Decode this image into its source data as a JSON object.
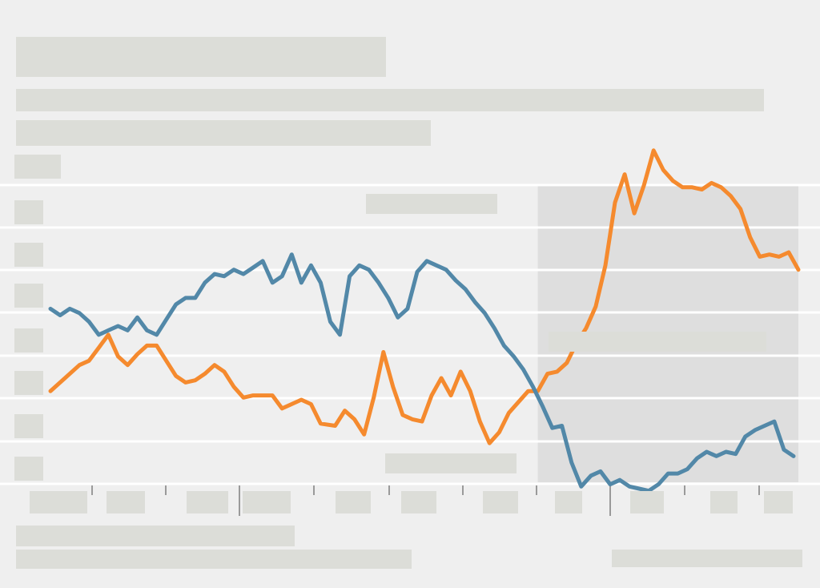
{
  "colors": {
    "background": "#efefef",
    "redaction": "#dcddd8",
    "gridline": "#ffffff",
    "highlight_band": "#dedede",
    "series_orange": "#f58a2e",
    "series_blue": "#5288a8"
  },
  "chart_data": {
    "type": "line",
    "title": "",
    "subtitle": "",
    "xlabel": "",
    "ylabel": "",
    "grid": "horizontal",
    "legend": "none",
    "xlim": [
      0,
      155
    ],
    "ylim": [
      0,
      8
    ],
    "highlight": {
      "x_start": 101,
      "x_end": 155
    },
    "series": [
      {
        "color": "#f58a2e",
        "points": [
          [
            0,
            2.25
          ],
          [
            3,
            2.55
          ],
          [
            6,
            2.85
          ],
          [
            8,
            2.95
          ],
          [
            10,
            3.25
          ],
          [
            12,
            3.55
          ],
          [
            14,
            3.05
          ],
          [
            16,
            2.85
          ],
          [
            18,
            3.1
          ],
          [
            20,
            3.3
          ],
          [
            22,
            3.3
          ],
          [
            24,
            2.95
          ],
          [
            26,
            2.6
          ],
          [
            28,
            2.45
          ],
          [
            30,
            2.5
          ],
          [
            32,
            2.65
          ],
          [
            34,
            2.85
          ],
          [
            36,
            2.7
          ],
          [
            38,
            2.35
          ],
          [
            40,
            2.1
          ],
          [
            42,
            2.15
          ],
          [
            46,
            2.15
          ],
          [
            48,
            1.85
          ],
          [
            52,
            2.05
          ],
          [
            54,
            1.95
          ],
          [
            56,
            1.5
          ],
          [
            59,
            1.45
          ],
          [
            61,
            1.8
          ],
          [
            63,
            1.6
          ],
          [
            65,
            1.25
          ],
          [
            67,
            2.1
          ],
          [
            69,
            3.15
          ],
          [
            71,
            2.35
          ],
          [
            73,
            1.7
          ],
          [
            75,
            1.6
          ],
          [
            77,
            1.55
          ],
          [
            79,
            2.15
          ],
          [
            81,
            2.55
          ],
          [
            83,
            2.15
          ],
          [
            85,
            2.7
          ],
          [
            87,
            2.25
          ],
          [
            89,
            1.55
          ],
          [
            91,
            1.05
          ],
          [
            93,
            1.3
          ],
          [
            95,
            1.75
          ],
          [
            97,
            2.0
          ],
          [
            99,
            2.25
          ],
          [
            101,
            2.25
          ],
          [
            103,
            2.65
          ],
          [
            105,
            2.7
          ],
          [
            107,
            2.9
          ],
          [
            109,
            3.35
          ],
          [
            111,
            3.7
          ],
          [
            113,
            4.2
          ],
          [
            115,
            5.15
          ],
          [
            117,
            6.6
          ],
          [
            119,
            7.25
          ],
          [
            121,
            6.35
          ],
          [
            123,
            7.0
          ],
          [
            125,
            7.8
          ],
          [
            127,
            7.35
          ],
          [
            129,
            7.1
          ],
          [
            131,
            6.95
          ],
          [
            133,
            6.95
          ],
          [
            135,
            6.9
          ],
          [
            137,
            7.05
          ],
          [
            139,
            6.95
          ],
          [
            141,
            6.75
          ],
          [
            143,
            6.45
          ],
          [
            145,
            5.8
          ],
          [
            147,
            5.35
          ],
          [
            149,
            5.4
          ],
          [
            151,
            5.35
          ],
          [
            153,
            5.45
          ],
          [
            155,
            5.05
          ]
        ]
      },
      {
        "color": "#5288a8",
        "points": [
          [
            0,
            4.15
          ],
          [
            2,
            4.0
          ],
          [
            4,
            4.15
          ],
          [
            6,
            4.05
          ],
          [
            8,
            3.85
          ],
          [
            10,
            3.55
          ],
          [
            12,
            3.65
          ],
          [
            14,
            3.75
          ],
          [
            16,
            3.65
          ],
          [
            18,
            3.95
          ],
          [
            20,
            3.65
          ],
          [
            22,
            3.55
          ],
          [
            24,
            3.9
          ],
          [
            26,
            4.25
          ],
          [
            28,
            4.4
          ],
          [
            30,
            4.4
          ],
          [
            32,
            4.75
          ],
          [
            34,
            4.95
          ],
          [
            36,
            4.9
          ],
          [
            38,
            5.05
          ],
          [
            40,
            4.95
          ],
          [
            42,
            5.1
          ],
          [
            44,
            5.25
          ],
          [
            46,
            4.75
          ],
          [
            48,
            4.9
          ],
          [
            50,
            5.4
          ],
          [
            52,
            4.75
          ],
          [
            54,
            5.15
          ],
          [
            56,
            4.75
          ],
          [
            58,
            3.85
          ],
          [
            60,
            3.55
          ],
          [
            62,
            4.9
          ],
          [
            64,
            5.15
          ],
          [
            66,
            5.05
          ],
          [
            68,
            4.75
          ],
          [
            70,
            4.4
          ],
          [
            72,
            3.95
          ],
          [
            74,
            4.15
          ],
          [
            76,
            5.0
          ],
          [
            78,
            5.25
          ],
          [
            80,
            5.15
          ],
          [
            82,
            5.05
          ],
          [
            84,
            4.8
          ],
          [
            86,
            4.6
          ],
          [
            88,
            4.3
          ],
          [
            90,
            4.05
          ],
          [
            92,
            3.7
          ],
          [
            94,
            3.3
          ],
          [
            96,
            3.05
          ],
          [
            98,
            2.75
          ],
          [
            100,
            2.35
          ],
          [
            102,
            1.9
          ],
          [
            104,
            1.4
          ],
          [
            106,
            1.45
          ],
          [
            108,
            0.6
          ],
          [
            110,
            0.05
          ],
          [
            112,
            0.3
          ],
          [
            114,
            0.4
          ],
          [
            116,
            0.1
          ],
          [
            118,
            0.2
          ],
          [
            120,
            0.05
          ],
          [
            122,
            0.0
          ],
          [
            124,
            -0.05
          ],
          [
            126,
            0.1
          ],
          [
            128,
            0.35
          ],
          [
            130,
            0.35
          ],
          [
            132,
            0.45
          ],
          [
            134,
            0.7
          ],
          [
            136,
            0.85
          ],
          [
            138,
            0.75
          ],
          [
            140,
            0.85
          ],
          [
            142,
            0.8
          ],
          [
            144,
            1.2
          ],
          [
            146,
            1.35
          ],
          [
            148,
            1.45
          ],
          [
            150,
            1.55
          ],
          [
            152,
            0.9
          ],
          [
            154,
            0.75
          ]
        ]
      }
    ]
  }
}
